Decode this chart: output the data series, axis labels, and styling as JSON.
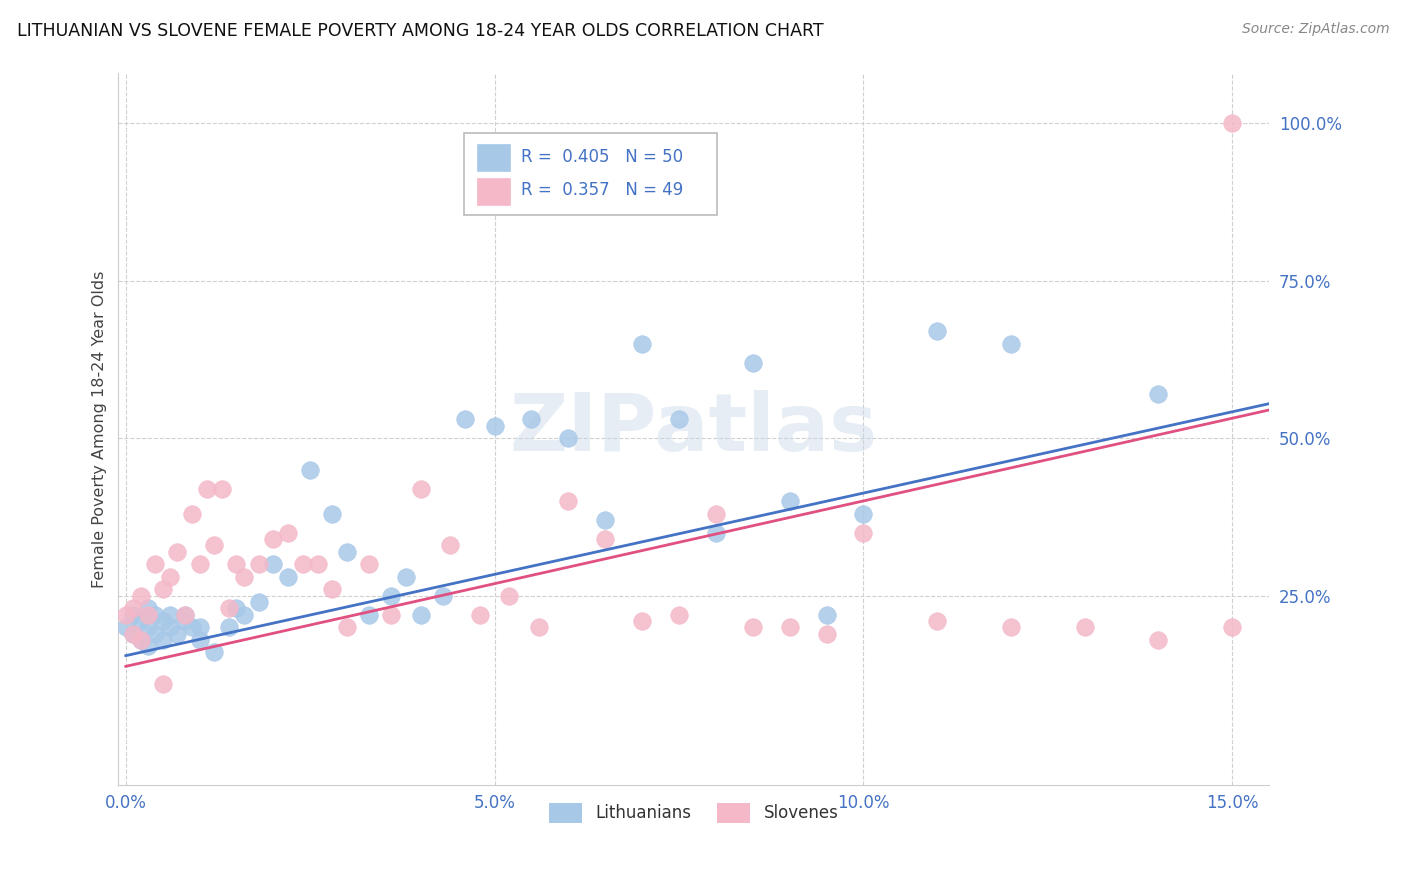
{
  "title": "LITHUANIAN VS SLOVENE FEMALE POVERTY AMONG 18-24 YEAR OLDS CORRELATION CHART",
  "source": "Source: ZipAtlas.com",
  "ylabel": "Female Poverty Among 18-24 Year Olds",
  "xlim": [
    -0.001,
    0.155
  ],
  "ylim": [
    -0.05,
    1.08
  ],
  "xticks": [
    0.0,
    0.05,
    0.1,
    0.15
  ],
  "xticklabels": [
    "0.0%",
    "5.0%",
    "10.0%",
    "15.0%"
  ],
  "yticks_right": [
    0.25,
    0.5,
    0.75,
    1.0
  ],
  "yticklabels_right": [
    "25.0%",
    "50.0%",
    "75.0%",
    "100.0%"
  ],
  "grid_color": "#d0d0d0",
  "background_color": "#ffffff",
  "blue_color": "#a8c8e8",
  "pink_color": "#f4b8c8",
  "blue_line_color": "#4472c4",
  "pink_line_color": "#e05080",
  "tick_color": "#4472c4",
  "R_blue": 0.405,
  "N_blue": 50,
  "R_pink": 0.357,
  "N_pink": 49,
  "blue_x": [
    0.0,
    0.001,
    0.001,
    0.002,
    0.002,
    0.003,
    0.003,
    0.003,
    0.004,
    0.004,
    0.005,
    0.005,
    0.006,
    0.006,
    0.007,
    0.008,
    0.008,
    0.009,
    0.01,
    0.01,
    0.012,
    0.014,
    0.015,
    0.016,
    0.018,
    0.02,
    0.022,
    0.025,
    0.028,
    0.03,
    0.033,
    0.036,
    0.038,
    0.04,
    0.043,
    0.046,
    0.05,
    0.055,
    0.06,
    0.065,
    0.07,
    0.075,
    0.08,
    0.085,
    0.09,
    0.095,
    0.1,
    0.11,
    0.12,
    0.14
  ],
  "blue_y": [
    0.2,
    0.22,
    0.19,
    0.21,
    0.18,
    0.23,
    0.2,
    0.17,
    0.22,
    0.19,
    0.18,
    0.21,
    0.2,
    0.22,
    0.19,
    0.22,
    0.21,
    0.2,
    0.2,
    0.18,
    0.16,
    0.2,
    0.23,
    0.22,
    0.24,
    0.3,
    0.28,
    0.45,
    0.38,
    0.32,
    0.22,
    0.25,
    0.28,
    0.22,
    0.25,
    0.53,
    0.52,
    0.53,
    0.5,
    0.37,
    0.65,
    0.53,
    0.35,
    0.62,
    0.4,
    0.22,
    0.38,
    0.67,
    0.65,
    0.57
  ],
  "pink_x": [
    0.0,
    0.001,
    0.001,
    0.002,
    0.002,
    0.003,
    0.004,
    0.005,
    0.005,
    0.006,
    0.007,
    0.008,
    0.009,
    0.01,
    0.011,
    0.012,
    0.013,
    0.014,
    0.015,
    0.016,
    0.018,
    0.02,
    0.022,
    0.024,
    0.026,
    0.028,
    0.03,
    0.033,
    0.036,
    0.04,
    0.044,
    0.048,
    0.052,
    0.056,
    0.06,
    0.065,
    0.07,
    0.075,
    0.08,
    0.085,
    0.09,
    0.095,
    0.1,
    0.11,
    0.12,
    0.13,
    0.14,
    0.15,
    0.15
  ],
  "pink_y": [
    0.22,
    0.23,
    0.19,
    0.25,
    0.18,
    0.22,
    0.3,
    0.26,
    0.11,
    0.28,
    0.32,
    0.22,
    0.38,
    0.3,
    0.42,
    0.33,
    0.42,
    0.23,
    0.3,
    0.28,
    0.3,
    0.34,
    0.35,
    0.3,
    0.3,
    0.26,
    0.2,
    0.3,
    0.22,
    0.42,
    0.33,
    0.22,
    0.25,
    0.2,
    0.4,
    0.34,
    0.21,
    0.22,
    0.38,
    0.2,
    0.2,
    0.19,
    0.35,
    0.21,
    0.2,
    0.2,
    0.18,
    0.2,
    1.0
  ],
  "blue_line_x0": 0.0,
  "blue_line_x1": 0.155,
  "blue_line_y0": 0.155,
  "blue_line_y1": 0.555,
  "pink_line_x0": 0.0,
  "pink_line_x1": 0.155,
  "pink_line_y0": 0.138,
  "pink_line_y1": 0.545
}
